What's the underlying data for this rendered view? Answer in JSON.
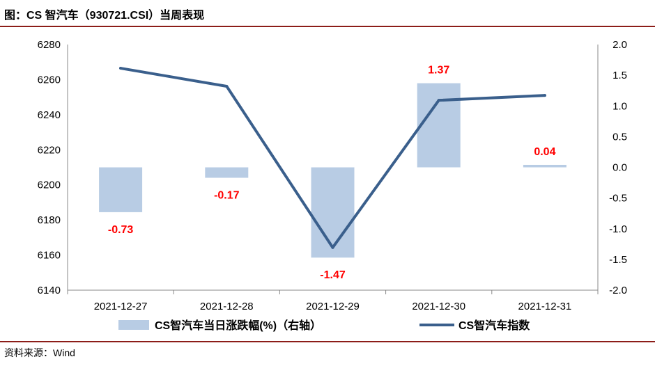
{
  "header": {
    "title": "图：CS 智汽车（930721.CSI）当周表现"
  },
  "footer": {
    "source": "资料来源：Wind"
  },
  "colors": {
    "bar": "#b8cce4",
    "line": "#3a5f8c",
    "label": "#ff0000",
    "rule": "#8c1d18"
  },
  "chart_data": {
    "type": "bar+line",
    "categories": [
      "2021-12-27",
      "2021-12-28",
      "2021-12-29",
      "2021-12-30",
      "2021-12-31"
    ],
    "bar_labels": [
      "-0.73",
      "-0.17",
      "-1.47",
      "1.37",
      "0.04"
    ],
    "left_axis": {
      "min": 6140,
      "max": 6280,
      "ticks": [
        "6140",
        "6160",
        "6180",
        "6200",
        "6220",
        "6240",
        "6260",
        "6280"
      ]
    },
    "right_axis": {
      "min": -2.0,
      "max": 2.0,
      "ticks": [
        "-2.0",
        "-1.5",
        "-1.0",
        "-0.5",
        "0.0",
        "0.5",
        "1.0",
        "1.5",
        "2.0"
      ]
    },
    "series": [
      {
        "name": "CS智汽车当日涨跌幅(%)（右轴）",
        "type": "bar",
        "axis": "right",
        "values": [
          -0.73,
          -0.17,
          -1.47,
          1.37,
          0.04
        ]
      },
      {
        "name": "CS智汽车指数",
        "type": "line",
        "axis": "left",
        "values": [
          6266.5,
          6256.2,
          6164.3,
          6248.2,
          6251.0
        ]
      }
    ],
    "grid": false,
    "legend_position": "bottom"
  }
}
